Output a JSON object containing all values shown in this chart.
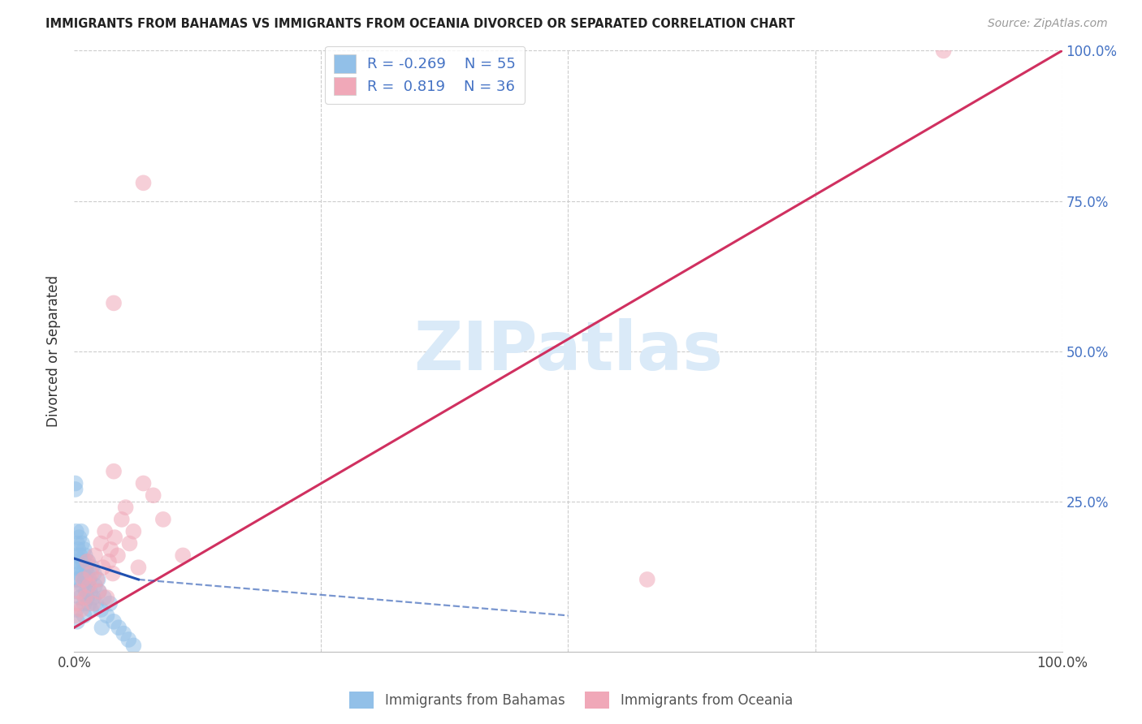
{
  "title": "IMMIGRANTS FROM BAHAMAS VS IMMIGRANTS FROM OCEANIA DIVORCED OR SEPARATED CORRELATION CHART",
  "source": "Source: ZipAtlas.com",
  "ylabel": "Divorced or Separated",
  "xlim": [
    0,
    1.0
  ],
  "ylim": [
    0,
    1.0
  ],
  "legend_r_blue": "-0.269",
  "legend_n_blue": "55",
  "legend_r_pink": "0.819",
  "legend_n_pink": "36",
  "blue_color": "#92c0e8",
  "pink_color": "#f0a8b8",
  "trend_blue_color": "#2050b0",
  "trend_pink_color": "#d03060",
  "watermark_color": "#daeaf8",
  "blue_points_x": [
    0.001,
    0.001,
    0.002,
    0.002,
    0.002,
    0.002,
    0.003,
    0.003,
    0.003,
    0.004,
    0.004,
    0.005,
    0.005,
    0.006,
    0.006,
    0.007,
    0.007,
    0.008,
    0.008,
    0.009,
    0.009,
    0.01,
    0.01,
    0.011,
    0.011,
    0.012,
    0.012,
    0.013,
    0.013,
    0.014,
    0.014,
    0.015,
    0.015,
    0.016,
    0.017,
    0.018,
    0.019,
    0.02,
    0.021,
    0.022,
    0.024,
    0.025,
    0.027,
    0.03,
    0.033,
    0.036,
    0.04,
    0.045,
    0.05,
    0.055,
    0.01,
    0.002,
    0.003,
    0.028,
    0.06
  ],
  "blue_points_y": [
    0.27,
    0.28,
    0.12,
    0.14,
    0.16,
    0.2,
    0.1,
    0.15,
    0.18,
    0.12,
    0.17,
    0.13,
    0.19,
    0.09,
    0.16,
    0.14,
    0.2,
    0.11,
    0.18,
    0.13,
    0.15,
    0.08,
    0.17,
    0.12,
    0.16,
    0.1,
    0.14,
    0.09,
    0.13,
    0.11,
    0.15,
    0.08,
    0.12,
    0.1,
    0.07,
    0.14,
    0.09,
    0.13,
    0.11,
    0.08,
    0.12,
    0.1,
    0.07,
    0.09,
    0.06,
    0.08,
    0.05,
    0.04,
    0.03,
    0.02,
    0.06,
    0.07,
    0.05,
    0.04,
    0.01
  ],
  "pink_points_x": [
    0.001,
    0.003,
    0.005,
    0.007,
    0.009,
    0.011,
    0.013,
    0.015,
    0.017,
    0.019,
    0.021,
    0.023,
    0.025,
    0.027,
    0.029,
    0.031,
    0.033,
    0.035,
    0.037,
    0.039,
    0.041,
    0.044,
    0.048,
    0.052,
    0.056,
    0.06,
    0.065,
    0.07,
    0.08,
    0.09,
    0.04,
    0.58,
    0.88,
    0.04,
    0.07,
    0.11
  ],
  "pink_points_y": [
    0.06,
    0.08,
    0.1,
    0.07,
    0.12,
    0.09,
    0.15,
    0.11,
    0.13,
    0.08,
    0.16,
    0.12,
    0.1,
    0.18,
    0.14,
    0.2,
    0.09,
    0.15,
    0.17,
    0.13,
    0.19,
    0.16,
    0.22,
    0.24,
    0.18,
    0.2,
    0.14,
    0.28,
    0.26,
    0.22,
    0.58,
    0.12,
    1.0,
    0.3,
    0.78,
    0.16
  ],
  "pink_trend_x0": 0.0,
  "pink_trend_y0": 0.04,
  "pink_trend_x1": 1.0,
  "pink_trend_y1": 1.0,
  "blue_trend_x0": 0.0,
  "blue_trend_y0": 0.155,
  "blue_trend_x1": 0.065,
  "blue_trend_y1": 0.12,
  "blue_trend_dash_x1": 0.5,
  "blue_trend_dash_y1": 0.06
}
